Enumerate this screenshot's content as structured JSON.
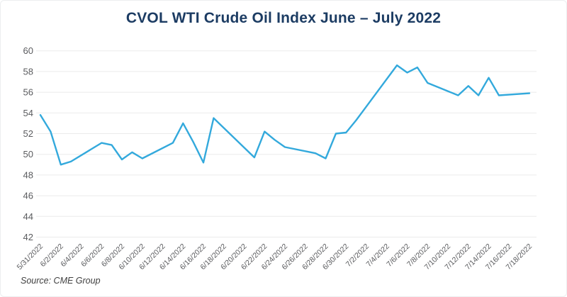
{
  "page": {
    "title": "CVOL WTI Crude Oil Index June – July 2022",
    "source": "Source: CME Group"
  },
  "colors": {
    "title": "#1c3c63",
    "line": "#33a9dc",
    "axis_labels": "#5a5b5e",
    "gridlines": "#ebebeb",
    "source_text": "#404040"
  },
  "chart_data": {
    "type": "line",
    "title": "CVOL WTI Crude Oil Index June – July 2022",
    "series_name": "CVOL WTI Crude Oil Index",
    "xlabel": "",
    "ylabel": "",
    "ylim": [
      42,
      60
    ],
    "y_ticks": [
      60,
      58,
      56,
      54,
      52,
      50,
      48,
      46,
      44,
      42
    ],
    "grid": "horizontal",
    "legend": "none",
    "x_tick_labels": [
      "5/31/2022",
      "6/2/2022",
      "6/4/2022",
      "6/6/2022",
      "6/8/2022",
      "6/10/2022",
      "6/12/2022",
      "6/14/2022",
      "6/16/2022",
      "6/18/2022",
      "6/20/2022",
      "6/22/2022",
      "6/24/2022",
      "6/26/2022",
      "6/28/2022",
      "6/30/2022",
      "7/2/2022",
      "7/4/2022",
      "7/6/2022",
      "7/8/2022",
      "7/10/2022",
      "7/12/2022",
      "7/14/2022",
      "7/16/2022",
      "7/18/2022"
    ],
    "x": [
      "5/31/2022",
      "6/1/2022",
      "6/2/2022",
      "6/3/2022",
      "6/6/2022",
      "6/7/2022",
      "6/8/2022",
      "6/9/2022",
      "6/10/2022",
      "6/13/2022",
      "6/14/2022",
      "6/15/2022",
      "6/16/2022",
      "6/17/2022",
      "6/21/2022",
      "6/22/2022",
      "6/23/2022",
      "6/24/2022",
      "6/27/2022",
      "6/28/2022",
      "6/29/2022",
      "6/30/2022",
      "7/1/2022",
      "7/5/2022",
      "7/6/2022",
      "7/7/2022",
      "7/8/2022",
      "7/11/2022",
      "7/12/2022",
      "7/13/2022",
      "7/14/2022",
      "7/15/2022",
      "7/18/2022"
    ],
    "values": [
      53.8,
      52.2,
      49.0,
      49.3,
      51.1,
      50.9,
      49.5,
      50.2,
      49.6,
      51.1,
      53.0,
      51.2,
      49.2,
      53.5,
      49.7,
      52.2,
      51.4,
      50.7,
      50.1,
      49.6,
      52.0,
      52.1,
      53.3,
      58.6,
      57.9,
      58.4,
      56.9,
      55.7,
      56.6,
      55.7,
      57.4,
      55.7,
      55.9
    ]
  }
}
